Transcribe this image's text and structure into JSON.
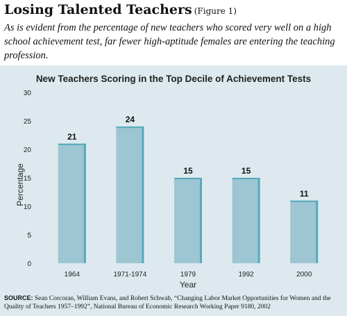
{
  "header": {
    "title": "Losing Talented Teachers",
    "figure_label": "(Figure 1)",
    "subtitle": "As is evident from the percentage of new teachers who scored very well on a high school achievement test, far fewer high-aptitude females are entering the teaching profession."
  },
  "source": {
    "label": "SOURCE:",
    "text": "Sean Corcoran, William Evans, and Robert Schwab, “Changing Labor Market Opportunities for Women and the Quality of Teachers 1957–1992”, National Bureau of Economic Research Working Paper 9180, 2002"
  },
  "colors": {
    "panel_bg": "#dde9ee",
    "bar_face": "#9dc5d2",
    "bar_edge": "#55aabb",
    "text": "#222222"
  },
  "chart_data": {
    "type": "bar",
    "title": "New Teachers Scoring in the Top Decile of Achievement Tests",
    "xlabel": "Year",
    "ylabel": "Percentage",
    "categories": [
      "1964",
      "1971-1974",
      "1979",
      "1992",
      "2000"
    ],
    "values": [
      21,
      24,
      15,
      15,
      11
    ],
    "data_labels": [
      "21",
      "24",
      "15",
      "15",
      "11"
    ],
    "ylim": [
      0,
      30
    ],
    "yticks": [
      0,
      5,
      10,
      15,
      20,
      25,
      30
    ],
    "grid": false,
    "legend": "none"
  }
}
